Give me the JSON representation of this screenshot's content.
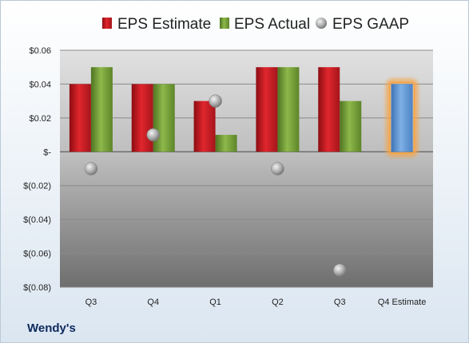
{
  "chart_data": {
    "type": "bar",
    "title": "",
    "company": "Wendy's",
    "categories": [
      "Q3",
      "Q4",
      "Q1",
      "Q2",
      "Q3",
      "Q4 Estimate"
    ],
    "series": [
      {
        "name": "EPS Estimate",
        "type": "bar",
        "color": "#d12027",
        "values": [
          0.04,
          0.04,
          0.03,
          0.05,
          0.05,
          null
        ]
      },
      {
        "name": "EPS Actual",
        "type": "bar",
        "color": "#7aa43a",
        "values": [
          0.05,
          0.04,
          0.01,
          0.05,
          0.03,
          null
        ]
      },
      {
        "name": "EPS GAAP",
        "type": "scatter",
        "color": "#a8a8a8",
        "values": [
          -0.01,
          0.01,
          0.03,
          -0.01,
          -0.07,
          null
        ]
      },
      {
        "name": "",
        "type": "bar",
        "color": "#6a9fd6",
        "highlight": "#f5a54a",
        "values": [
          null,
          null,
          null,
          null,
          null,
          0.04
        ]
      }
    ],
    "ylim": [
      -0.08,
      0.06
    ],
    "yticks": [
      0.06,
      0.04,
      0.02,
      0,
      -0.02,
      -0.04,
      -0.06,
      -0.08
    ],
    "ytick_labels": [
      "$0.06",
      "$0.04",
      "$0.02",
      "$-",
      "$(0.02)",
      "$(0.04)",
      "$(0.06)",
      "$(0.08)"
    ],
    "grid": true,
    "legend_position": "top"
  }
}
